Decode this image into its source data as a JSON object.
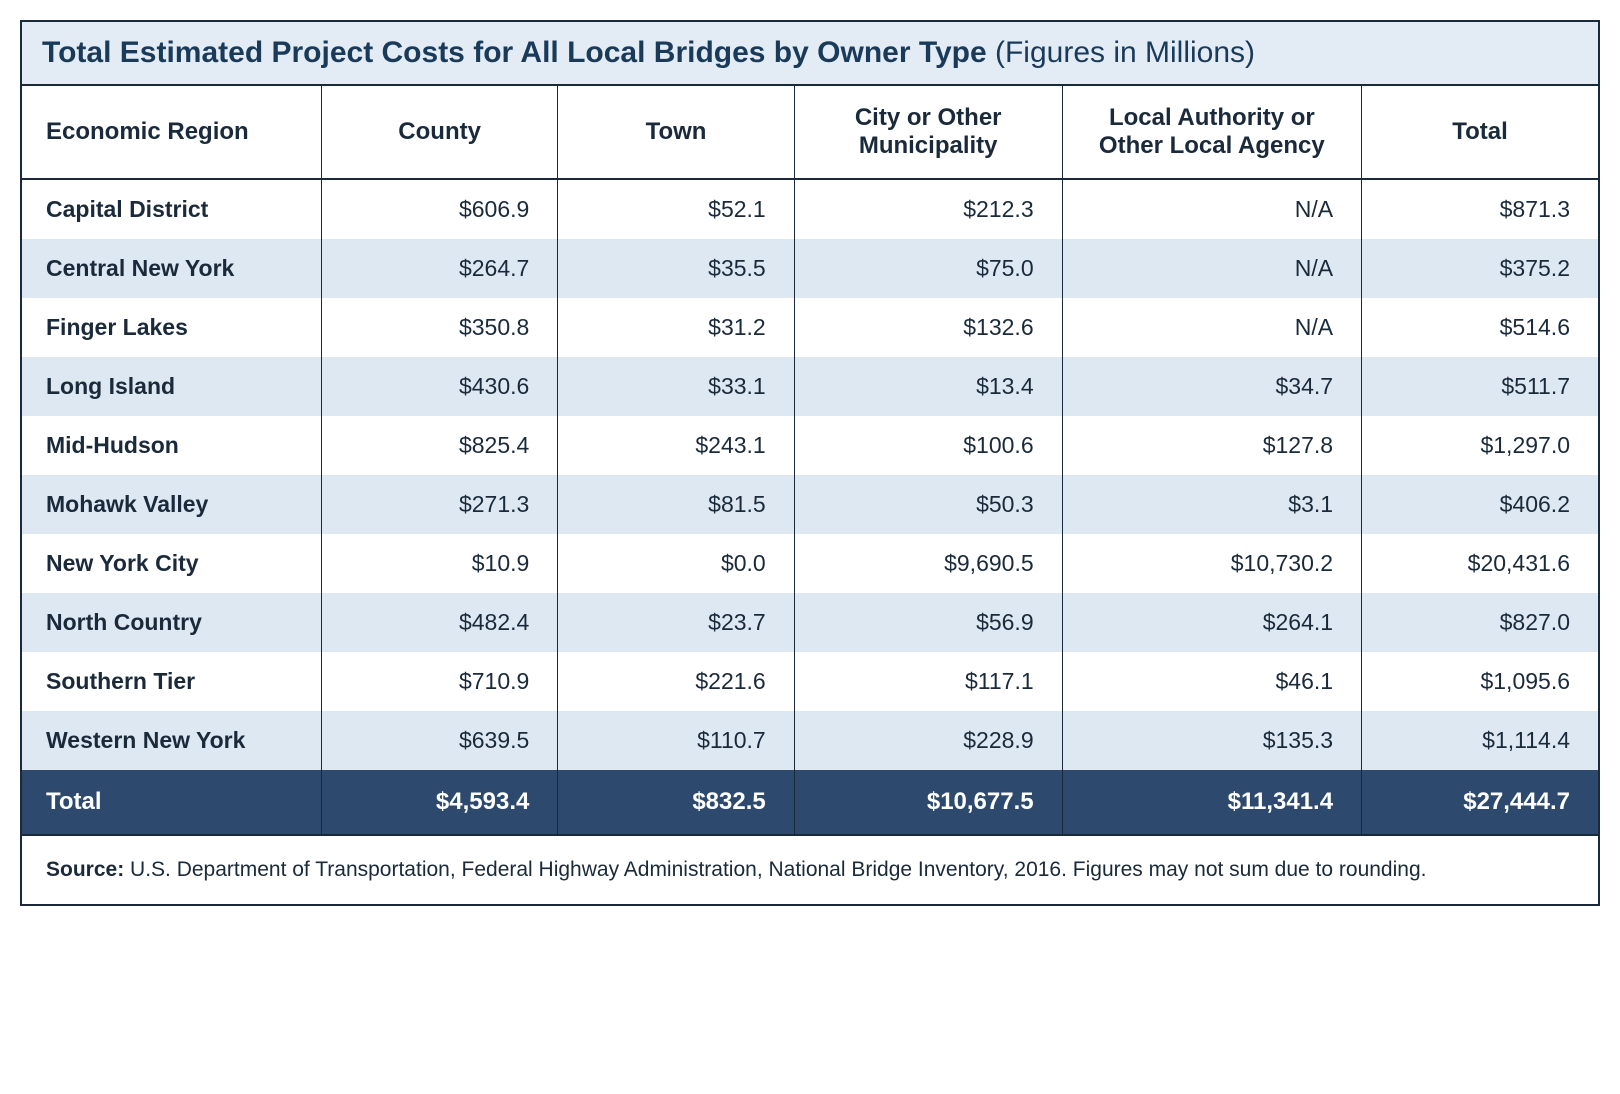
{
  "title": {
    "bold": "Total Estimated Project Costs for All Local Bridges by Owner Type",
    "light": " (Figures in Millions)"
  },
  "columns": [
    "Economic Region",
    "County",
    "Town",
    "City or Other Municipality",
    "Local Authority or Other Local Agency",
    "Total"
  ],
  "rows": [
    {
      "region": "Capital District",
      "county": "$606.9",
      "town": "$52.1",
      "city": "$212.3",
      "authority": "N/A",
      "total": "$871.3"
    },
    {
      "region": "Central New York",
      "county": "$264.7",
      "town": "$35.5",
      "city": "$75.0",
      "authority": "N/A",
      "total": "$375.2"
    },
    {
      "region": "Finger Lakes",
      "county": "$350.8",
      "town": "$31.2",
      "city": "$132.6",
      "authority": "N/A",
      "total": "$514.6"
    },
    {
      "region": "Long Island",
      "county": "$430.6",
      "town": "$33.1",
      "city": "$13.4",
      "authority": "$34.7",
      "total": "$511.7"
    },
    {
      "region": "Mid-Hudson",
      "county": "$825.4",
      "town": "$243.1",
      "city": "$100.6",
      "authority": "$127.8",
      "total": "$1,297.0"
    },
    {
      "region": "Mohawk Valley",
      "county": "$271.3",
      "town": "$81.5",
      "city": "$50.3",
      "authority": "$3.1",
      "total": "$406.2"
    },
    {
      "region": "New York City",
      "county": "$10.9",
      "town": "$0.0",
      "city": "$9,690.5",
      "authority": "$10,730.2",
      "total": "$20,431.6"
    },
    {
      "region": "North Country",
      "county": "$482.4",
      "town": "$23.7",
      "city": "$56.9",
      "authority": "$264.1",
      "total": "$827.0"
    },
    {
      "region": "Southern Tier",
      "county": "$710.9",
      "town": "$221.6",
      "city": "$117.1",
      "authority": "$46.1",
      "total": "$1,095.6"
    },
    {
      "region": "Western New York",
      "county": "$639.5",
      "town": "$110.7",
      "city": "$228.9",
      "authority": "$135.3",
      "total": "$1,114.4"
    }
  ],
  "totals": {
    "label": "Total",
    "county": "$4,593.4",
    "town": "$832.5",
    "city": "$10,677.5",
    "authority": "$11,341.4",
    "total": "$27,444.7"
  },
  "source": {
    "label": "Source:",
    "text": "  U.S. Department of Transportation, Federal Highway Administration, National Bridge Inventory, 2016. Figures may not sum due to rounding."
  },
  "style": {
    "title_bg": "#e3ecf5",
    "row_odd_bg": "#ffffff",
    "row_even_bg": "#dde8f3",
    "total_bg": "#2d4a6e",
    "border_color": "#1a2a3a",
    "text_color": "#1a2a3a",
    "title_color": "#1a3a5a",
    "header_fontsize": 24,
    "cell_fontsize": 23,
    "title_fontsize": 30,
    "source_fontsize": 21
  }
}
